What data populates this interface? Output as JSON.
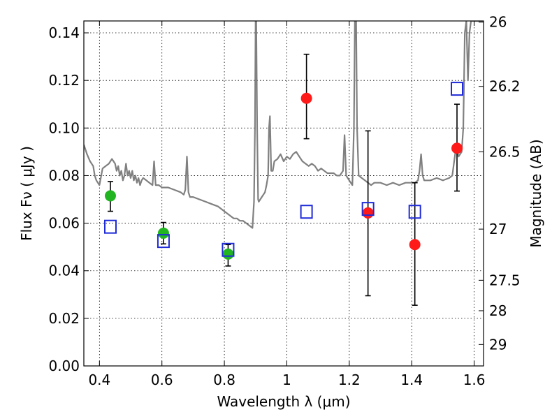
{
  "chart_data": {
    "type": "scatter",
    "title": "",
    "xlabel": "Wavelength  λ (μm)",
    "ylabel": "Flux  Fν  ( μJy )",
    "y2label": "Magnitude (AB)",
    "xlim": [
      0.35,
      1.63
    ],
    "ylim": [
      0.0,
      0.145
    ],
    "grid": true,
    "legend": "none",
    "x_ticks": [
      {
        "value": 0.4,
        "label": "0.4"
      },
      {
        "value": 0.6,
        "label": "0.6"
      },
      {
        "value": 0.8,
        "label": "0.8"
      },
      {
        "value": 1.0,
        "label": "1"
      },
      {
        "value": 1.2,
        "label": "1.2"
      },
      {
        "value": 1.4,
        "label": "1.4"
      },
      {
        "value": 1.6,
        "label": "1.6"
      }
    ],
    "y_ticks": [
      {
        "value": 0.0,
        "label": "0.00"
      },
      {
        "value": 0.02,
        "label": "0.02"
      },
      {
        "value": 0.04,
        "label": "0.04"
      },
      {
        "value": 0.06,
        "label": "0.06"
      },
      {
        "value": 0.08,
        "label": "0.08"
      },
      {
        "value": 0.1,
        "label": "0.10"
      },
      {
        "value": 0.12,
        "label": "0.12"
      },
      {
        "value": 0.14,
        "label": "0.14"
      }
    ],
    "y2_ticks": [
      {
        "flux": 0.1445,
        "label": "26"
      },
      {
        "flux": 0.1175,
        "label": "26.2"
      },
      {
        "flux": 0.09,
        "label": "26.5"
      },
      {
        "flux": 0.0575,
        "label": "27"
      },
      {
        "flux": 0.036,
        "label": "27.5"
      },
      {
        "flux": 0.0232,
        "label": "28"
      },
      {
        "flux": 0.009,
        "label": "29"
      }
    ],
    "series": [
      {
        "color": "#808080",
        "style": "line",
        "points": [
          [
            0.35,
            0.093
          ],
          [
            0.36,
            0.089
          ],
          [
            0.37,
            0.086
          ],
          [
            0.38,
            0.084
          ],
          [
            0.385,
            0.08
          ],
          [
            0.39,
            0.078
          ],
          [
            0.395,
            0.077
          ],
          [
            0.4,
            0.076
          ],
          [
            0.41,
            0.083
          ],
          [
            0.42,
            0.084
          ],
          [
            0.43,
            0.085
          ],
          [
            0.44,
            0.087
          ],
          [
            0.45,
            0.085
          ],
          [
            0.455,
            0.082
          ],
          [
            0.46,
            0.084
          ],
          [
            0.465,
            0.08
          ],
          [
            0.47,
            0.082
          ],
          [
            0.475,
            0.078
          ],
          [
            0.48,
            0.08
          ],
          [
            0.485,
            0.085
          ],
          [
            0.49,
            0.08
          ],
          [
            0.495,
            0.082
          ],
          [
            0.5,
            0.079
          ],
          [
            0.505,
            0.082
          ],
          [
            0.51,
            0.078
          ],
          [
            0.515,
            0.08
          ],
          [
            0.52,
            0.077
          ],
          [
            0.525,
            0.079
          ],
          [
            0.53,
            0.076
          ],
          [
            0.535,
            0.078
          ],
          [
            0.54,
            0.079
          ],
          [
            0.55,
            0.078
          ],
          [
            0.56,
            0.077
          ],
          [
            0.57,
            0.076
          ],
          [
            0.575,
            0.086
          ],
          [
            0.58,
            0.076
          ],
          [
            0.59,
            0.076
          ],
          [
            0.6,
            0.075
          ],
          [
            0.62,
            0.075
          ],
          [
            0.64,
            0.074
          ],
          [
            0.66,
            0.073
          ],
          [
            0.67,
            0.072
          ],
          [
            0.675,
            0.074
          ],
          [
            0.68,
            0.088
          ],
          [
            0.685,
            0.073
          ],
          [
            0.69,
            0.071
          ],
          [
            0.7,
            0.071
          ],
          [
            0.72,
            0.07
          ],
          [
            0.74,
            0.069
          ],
          [
            0.76,
            0.068
          ],
          [
            0.78,
            0.067
          ],
          [
            0.79,
            0.066
          ],
          [
            0.8,
            0.065
          ],
          [
            0.81,
            0.064
          ],
          [
            0.82,
            0.063
          ],
          [
            0.83,
            0.062
          ],
          [
            0.84,
            0.062
          ],
          [
            0.85,
            0.061
          ],
          [
            0.86,
            0.061
          ],
          [
            0.87,
            0.06
          ],
          [
            0.88,
            0.059
          ],
          [
            0.89,
            0.058
          ],
          [
            0.895,
            0.069
          ],
          [
            0.898,
            0.1
          ],
          [
            0.9,
            0.145
          ],
          [
            0.902,
            0.145
          ],
          [
            0.905,
            0.1
          ],
          [
            0.908,
            0.07
          ],
          [
            0.91,
            0.069
          ],
          [
            0.92,
            0.071
          ],
          [
            0.93,
            0.073
          ],
          [
            0.935,
            0.076
          ],
          [
            0.94,
            0.08
          ],
          [
            0.943,
            0.1
          ],
          [
            0.946,
            0.105
          ],
          [
            0.95,
            0.082
          ],
          [
            0.955,
            0.082
          ],
          [
            0.96,
            0.086
          ],
          [
            0.97,
            0.087
          ],
          [
            0.98,
            0.089
          ],
          [
            0.99,
            0.086
          ],
          [
            1.0,
            0.088
          ],
          [
            1.01,
            0.087
          ],
          [
            1.02,
            0.089
          ],
          [
            1.03,
            0.09
          ],
          [
            1.04,
            0.088
          ],
          [
            1.05,
            0.086
          ],
          [
            1.06,
            0.085
          ],
          [
            1.07,
            0.084
          ],
          [
            1.08,
            0.085
          ],
          [
            1.09,
            0.084
          ],
          [
            1.1,
            0.082
          ],
          [
            1.11,
            0.083
          ],
          [
            1.12,
            0.082
          ],
          [
            1.13,
            0.081
          ],
          [
            1.14,
            0.081
          ],
          [
            1.15,
            0.081
          ],
          [
            1.16,
            0.08
          ],
          [
            1.17,
            0.08
          ],
          [
            1.18,
            0.082
          ],
          [
            1.185,
            0.097
          ],
          [
            1.19,
            0.08
          ],
          [
            1.2,
            0.078
          ],
          [
            1.21,
            0.076
          ],
          [
            1.215,
            0.1
          ],
          [
            1.218,
            0.145
          ],
          [
            1.222,
            0.145
          ],
          [
            1.225,
            0.1
          ],
          [
            1.23,
            0.08
          ],
          [
            1.24,
            0.079
          ],
          [
            1.25,
            0.078
          ],
          [
            1.26,
            0.077
          ],
          [
            1.27,
            0.076
          ],
          [
            1.28,
            0.077
          ],
          [
            1.3,
            0.077
          ],
          [
            1.32,
            0.076
          ],
          [
            1.34,
            0.077
          ],
          [
            1.36,
            0.076
          ],
          [
            1.38,
            0.077
          ],
          [
            1.4,
            0.077
          ],
          [
            1.41,
            0.077
          ],
          [
            1.42,
            0.078
          ],
          [
            1.425,
            0.082
          ],
          [
            1.43,
            0.089
          ],
          [
            1.435,
            0.08
          ],
          [
            1.44,
            0.078
          ],
          [
            1.46,
            0.078
          ],
          [
            1.48,
            0.079
          ],
          [
            1.5,
            0.078
          ],
          [
            1.52,
            0.079
          ],
          [
            1.53,
            0.08
          ],
          [
            1.54,
            0.09
          ],
          [
            1.545,
            0.091
          ],
          [
            1.55,
            0.088
          ],
          [
            1.56,
            0.09
          ],
          [
            1.565,
            0.1
          ],
          [
            1.57,
            0.14
          ],
          [
            1.575,
            0.145
          ],
          [
            1.58,
            0.12
          ],
          [
            1.585,
            0.14
          ],
          [
            1.59,
            0.145
          ],
          [
            1.6,
            0.145
          ],
          [
            1.61,
            0.145
          ],
          [
            1.62,
            0.145
          ],
          [
            1.625,
            0.145
          ],
          [
            1.63,
            0.145
          ]
        ]
      },
      {
        "color": "#22b522",
        "style": "circle",
        "points": [
          {
            "x": 0.435,
            "y": 0.0715,
            "err_lo": 0.0065,
            "err_hi": 0.006
          },
          {
            "x": 0.605,
            "y": 0.0558,
            "err_lo": 0.0045,
            "err_hi": 0.0045
          },
          {
            "x": 0.812,
            "y": 0.047,
            "err_lo": 0.005,
            "err_hi": 0.004
          }
        ]
      },
      {
        "color": "#ff1a1a",
        "style": "circle",
        "points": [
          {
            "x": 1.063,
            "y": 0.1125,
            "err_lo": 0.017,
            "err_hi": 0.0185
          },
          {
            "x": 1.26,
            "y": 0.0643,
            "err_lo": 0.0348,
            "err_hi": 0.0345
          },
          {
            "x": 1.41,
            "y": 0.051,
            "err_lo": 0.0255,
            "err_hi": 0.026
          },
          {
            "x": 1.545,
            "y": 0.0915,
            "err_lo": 0.018,
            "err_hi": 0.0185
          }
        ]
      },
      {
        "color": "#1f2bd8",
        "style": "square",
        "points": [
          {
            "x": 0.435,
            "y": 0.0585
          },
          {
            "x": 0.605,
            "y": 0.0525
          },
          {
            "x": 0.812,
            "y": 0.0488
          },
          {
            "x": 1.063,
            "y": 0.0648
          },
          {
            "x": 1.26,
            "y": 0.066
          },
          {
            "x": 1.41,
            "y": 0.0648
          },
          {
            "x": 1.545,
            "y": 0.1165
          }
        ]
      }
    ]
  }
}
